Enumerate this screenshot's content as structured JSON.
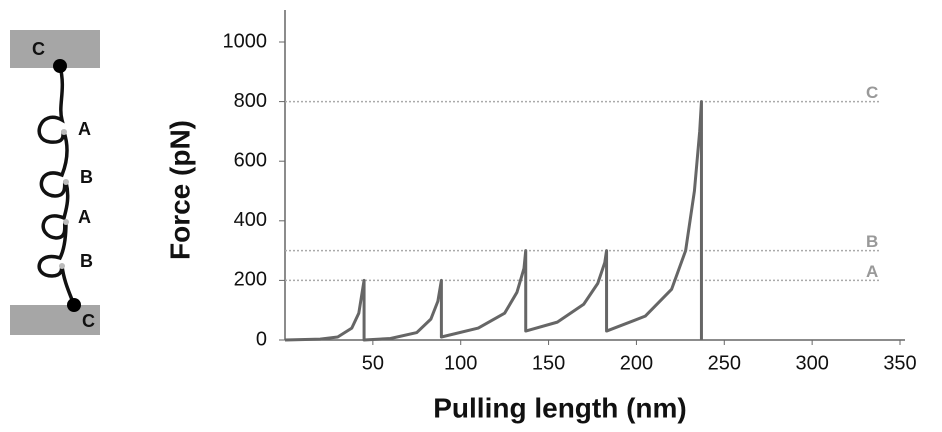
{
  "diagram": {
    "labels": [
      "C",
      "A",
      "B",
      "A",
      "B",
      "C"
    ]
  },
  "chart_data": {
    "type": "line",
    "x_label": "Pulling length (nm)",
    "y_label": "Force (pN)",
    "xlim": [
      0,
      350
    ],
    "ylim": [
      0,
      1000
    ],
    "xticks": [
      50,
      100,
      150,
      200,
      250,
      300,
      350
    ],
    "yticks": [
      0,
      200,
      400,
      600,
      800,
      1000
    ],
    "reference_lines": [
      {
        "value": 800,
        "label": "C"
      },
      {
        "value": 300,
        "label": "B"
      },
      {
        "value": 200,
        "label": "A"
      }
    ],
    "reference_color": "#aaaaaa",
    "series": [
      {
        "color": "#666666",
        "x": [
          0,
          20,
          30,
          38,
          42,
          45,
          45,
          60,
          75,
          83,
          87,
          89,
          89,
          110,
          125,
          132,
          136,
          137,
          137,
          155,
          170,
          178,
          182,
          183,
          183,
          205,
          220,
          228,
          233,
          236,
          237,
          237
        ],
        "values": [
          0,
          3,
          10,
          40,
          90,
          200,
          0,
          5,
          25,
          70,
          130,
          200,
          10,
          40,
          90,
          160,
          240,
          300,
          30,
          60,
          120,
          190,
          260,
          300,
          30,
          80,
          170,
          300,
          500,
          700,
          800,
          0
        ]
      }
    ]
  }
}
